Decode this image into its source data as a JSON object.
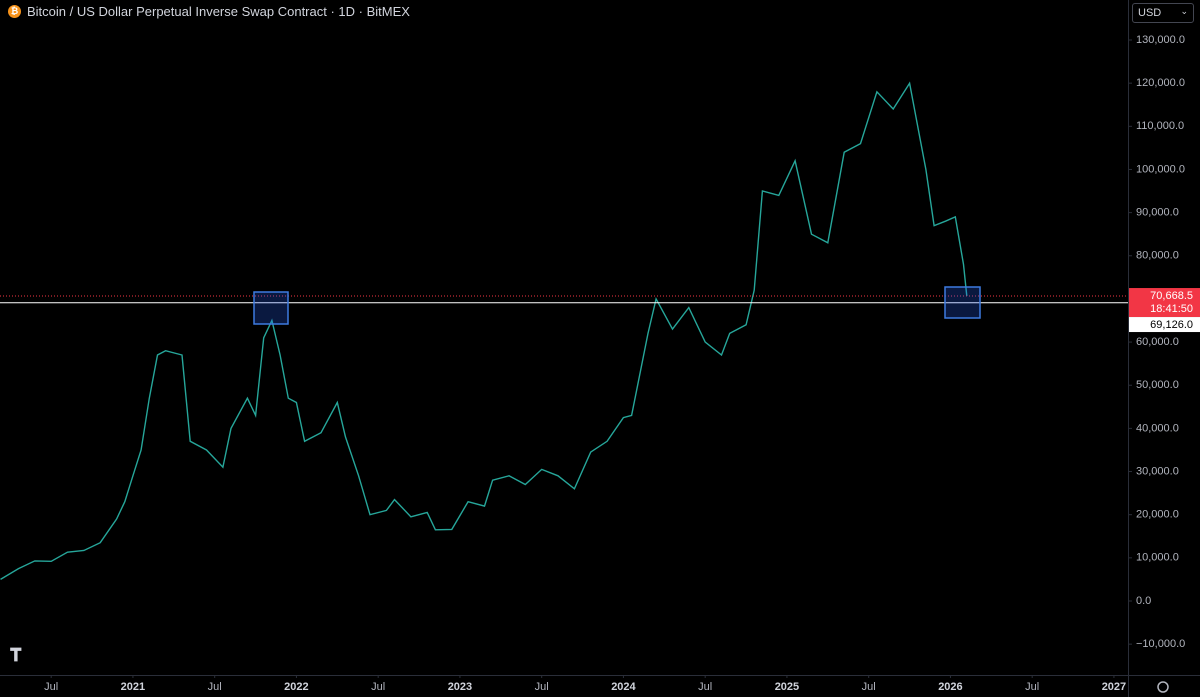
{
  "chart_data": {
    "type": "line",
    "title": "Bitcoin / US Dollar Perpetual Inverse Swap Contract · 1D · BitMEX",
    "currency": "USD",
    "x": [
      2020.19,
      2020.3,
      2020.4,
      2020.5,
      2020.6,
      2020.7,
      2020.8,
      2020.9,
      2020.95,
      2021.0,
      2021.05,
      2021.1,
      2021.15,
      2021.2,
      2021.3,
      2021.35,
      2021.45,
      2021.55,
      2021.6,
      2021.7,
      2021.75,
      2021.8,
      2021.85,
      2021.9,
      2021.95,
      2022.0,
      2022.05,
      2022.15,
      2022.25,
      2022.3,
      2022.38,
      2022.45,
      2022.55,
      2022.6,
      2022.7,
      2022.8,
      2022.85,
      2022.95,
      2023.05,
      2023.15,
      2023.2,
      2023.3,
      2023.4,
      2023.5,
      2023.6,
      2023.7,
      2023.8,
      2023.9,
      2024.0,
      2024.05,
      2024.15,
      2024.2,
      2024.3,
      2024.4,
      2024.5,
      2024.6,
      2024.65,
      2024.75,
      2024.8,
      2024.85,
      2024.95,
      2025.05,
      2025.15,
      2025.25,
      2025.35,
      2025.45,
      2025.55,
      2025.65,
      2025.75,
      2025.8,
      2025.85,
      2025.9,
      2025.97,
      2026.03,
      2026.08,
      2026.1
    ],
    "series": [
      {
        "name": "BTC",
        "color": "#26a69a",
        "values": [
          5000,
          7500,
          9300,
          9200,
          11300,
          11700,
          13500,
          19000,
          23000,
          29000,
          35000,
          47000,
          57000,
          58000,
          57000,
          37000,
          35000,
          31000,
          40000,
          47000,
          43000,
          61000,
          65000,
          57000,
          47000,
          46000,
          37000,
          39000,
          46000,
          38000,
          29000,
          20000,
          21000,
          23500,
          19500,
          20500,
          16500,
          16600,
          23000,
          22000,
          28000,
          29000,
          27000,
          30500,
          29000,
          26000,
          34500,
          37000,
          42500,
          43000,
          62000,
          70000,
          63000,
          68000,
          60000,
          57000,
          62000,
          64000,
          72000,
          95000,
          94000,
          102000,
          85000,
          83000,
          104000,
          106000,
          118000,
          114000,
          120000,
          110000,
          100000,
          87000,
          88000,
          89000,
          78000,
          70668.5
        ]
      }
    ],
    "last_price": {
      "value": 70668.5,
      "label": "70,668.5",
      "color": "#f23645"
    },
    "countdown": "18:41:50",
    "horizontal_line": {
      "value": 69126,
      "label": "69,126.0",
      "color": "#ffffff"
    },
    "ylim": [
      -17150,
      139270
    ],
    "yticks": [
      {
        "value": 130000,
        "label": "130,000.0"
      },
      {
        "value": 120000,
        "label": "120,000.0"
      },
      {
        "value": 110000,
        "label": "110,000.0"
      },
      {
        "value": 100000,
        "label": "100,000.0"
      },
      {
        "value": 90000,
        "label": "90,000.0"
      },
      {
        "value": 80000,
        "label": "80,000.0"
      },
      {
        "value": 60000,
        "label": "60,000.0"
      },
      {
        "value": 50000,
        "label": "50,000.0"
      },
      {
        "value": 40000,
        "label": "40,000.0"
      },
      {
        "value": 30000,
        "label": "30,000.0"
      },
      {
        "value": 20000,
        "label": "20,000.0"
      },
      {
        "value": 10000,
        "label": "10,000.0"
      },
      {
        "value": 0,
        "label": "0.0"
      },
      {
        "value": -10000,
        "label": "−10,000.0"
      }
    ],
    "xlim": [
      2020.187,
      2027.086
    ],
    "xticks": [
      {
        "value": 2020.5,
        "label": "Jul"
      },
      2021,
      {
        "value": 2021.5,
        "label": "Jul"
      },
      2022,
      {
        "value": 2022.5,
        "label": "Jul"
      },
      2023,
      {
        "value": 2023.5,
        "label": "Jul"
      },
      2024,
      {
        "value": 2024.5,
        "label": "Jul"
      },
      2025,
      {
        "value": 2025.5,
        "label": "Jul"
      },
      2026,
      {
        "value": 2026.5,
        "label": "Jul"
      },
      2027
    ]
  }
}
